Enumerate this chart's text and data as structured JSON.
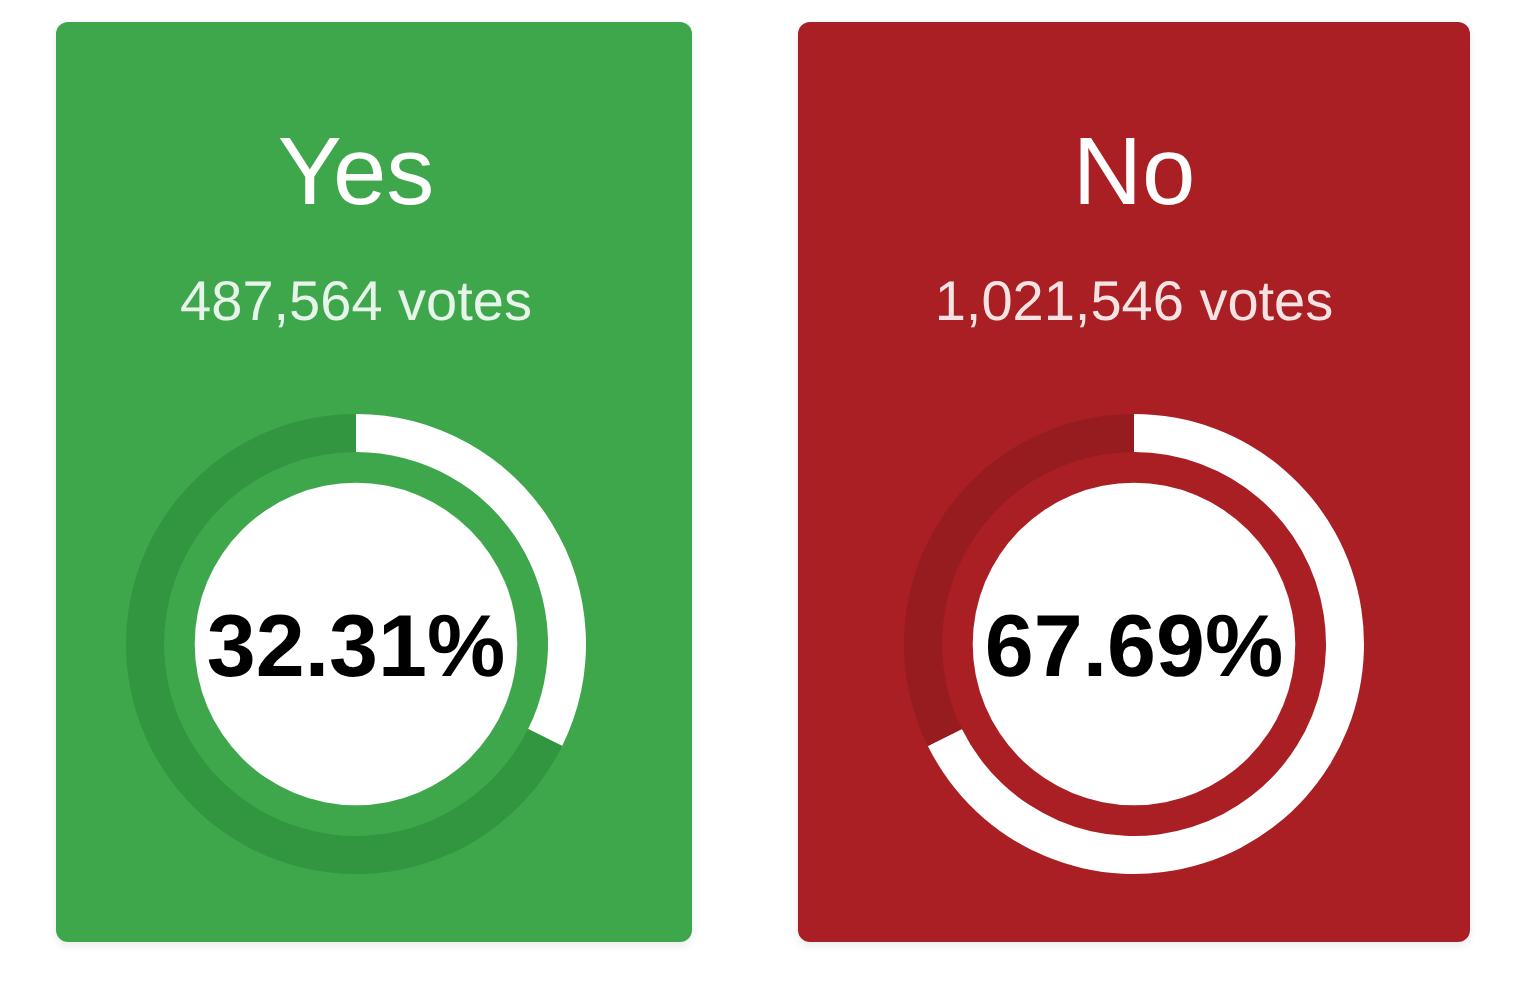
{
  "chart_data": [
    {
      "type": "donut",
      "title": "Yes",
      "subtitle": "487,564 votes",
      "categories": [
        null,
        null
      ],
      "values": [
        32.31,
        67.69
      ],
      "colors": [
        "#ffffff",
        "#32953f"
      ],
      "annotations": [
        "32.31%"
      ]
    },
    {
      "type": "donut",
      "title": "No",
      "subtitle": "1,021,546 votes",
      "categories": [
        null,
        null
      ],
      "values": [
        67.69,
        32.31
      ],
      "colors": [
        "#ffffff",
        "#961c20"
      ],
      "annotations": [
        "67.69%"
      ]
    }
  ]
}
